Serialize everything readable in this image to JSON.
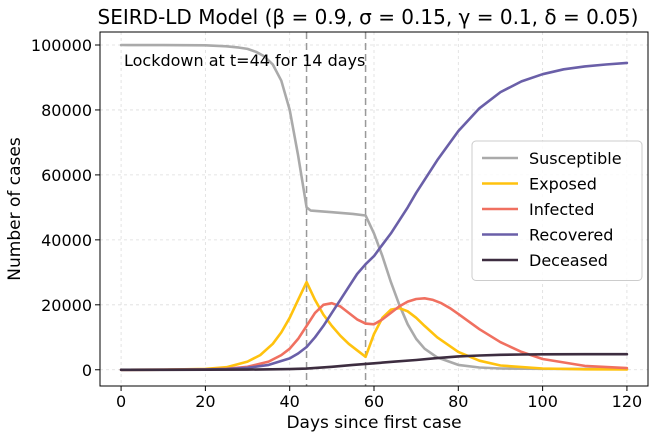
{
  "chart_data": {
    "type": "line",
    "title": "SEIRD-LD Model (β = 0.9, σ = 0.15, γ = 0.1, δ = 0.05)",
    "xlabel": "Days since first case",
    "ylabel": "Number of cases",
    "xlim": [
      -5,
      125
    ],
    "ylim": [
      -5000,
      104000
    ],
    "xticks": [
      0,
      20,
      40,
      60,
      80,
      100,
      120
    ],
    "yticks": [
      0,
      20000,
      40000,
      60000,
      80000,
      100000
    ],
    "grid": true,
    "legend_position": "center-right",
    "annotation": "Lockdown at t=44 for 14 days",
    "lockdown_lines": [
      44,
      58
    ],
    "series": [
      {
        "name": "Susceptible",
        "color": "#aaaaaa",
        "x": [
          0,
          10,
          20,
          25,
          28,
          30,
          32,
          34,
          36,
          38,
          40,
          42,
          44,
          45,
          50,
          55,
          58,
          60,
          62,
          64,
          66,
          68,
          70,
          72,
          75,
          80,
          85,
          90,
          100,
          110,
          120
        ],
        "y": [
          100000,
          99980,
          99900,
          99600,
          99200,
          98800,
          97900,
          96500,
          94000,
          89000,
          80000,
          66000,
          50000,
          49000,
          48500,
          48000,
          47500,
          42000,
          35000,
          27000,
          20000,
          14000,
          9500,
          6500,
          3800,
          1500,
          700,
          400,
          300,
          250,
          250
        ]
      },
      {
        "name": "Exposed",
        "color": "#ffc20e",
        "x": [
          0,
          10,
          20,
          25,
          30,
          33,
          36,
          38,
          40,
          42,
          44,
          46,
          48,
          50,
          52,
          54,
          56,
          58,
          60,
          62,
          64,
          66,
          68,
          70,
          72,
          75,
          80,
          85,
          90,
          100,
          110,
          120
        ],
        "y": [
          0,
          20,
          250,
          800,
          2500,
          4500,
          8000,
          11500,
          16000,
          21500,
          27000,
          21500,
          17000,
          13500,
          10500,
          8000,
          6000,
          4000,
          11000,
          16000,
          18500,
          19000,
          18000,
          16000,
          13500,
          10000,
          5500,
          2800,
          1300,
          400,
          150,
          100
        ]
      },
      {
        "name": "Infected",
        "color": "#f07060",
        "x": [
          0,
          10,
          20,
          25,
          30,
          35,
          38,
          40,
          42,
          44,
          46,
          48,
          50,
          52,
          54,
          56,
          58,
          60,
          62,
          64,
          66,
          68,
          70,
          72,
          74,
          76,
          78,
          80,
          85,
          90,
          95,
          100,
          110,
          120
        ],
        "y": [
          0,
          10,
          100,
          300,
          900,
          2500,
          4500,
          6500,
          9500,
          13500,
          17500,
          20000,
          20500,
          19500,
          17500,
          15500,
          14200,
          14000,
          15500,
          17500,
          19500,
          21000,
          21800,
          22000,
          21500,
          20500,
          19000,
          17200,
          12500,
          8500,
          5500,
          3300,
          1200,
          500
        ]
      },
      {
        "name": "Recovered",
        "color": "#6a5fa8",
        "x": [
          0,
          10,
          20,
          25,
          30,
          35,
          40,
          42,
          44,
          46,
          48,
          50,
          52,
          54,
          56,
          58,
          60,
          62,
          64,
          66,
          68,
          70,
          72,
          75,
          80,
          85,
          90,
          95,
          100,
          105,
          110,
          115,
          120
        ],
        "y": [
          0,
          5,
          60,
          200,
          600,
          1500,
          3500,
          5000,
          7000,
          10000,
          13500,
          17500,
          21500,
          25500,
          29500,
          32500,
          35000,
          38500,
          42000,
          46000,
          50000,
          54500,
          58500,
          64500,
          73500,
          80500,
          85500,
          88800,
          91000,
          92500,
          93400,
          94000,
          94500
        ]
      },
      {
        "name": "Deceased",
        "color": "#3d2d40",
        "x": [
          0,
          10,
          20,
          30,
          40,
          44,
          50,
          55,
          60,
          65,
          70,
          75,
          80,
          85,
          90,
          95,
          100,
          110,
          120
        ],
        "y": [
          0,
          0,
          10,
          40,
          200,
          350,
          900,
          1500,
          2000,
          2500,
          3000,
          3600,
          4100,
          4400,
          4600,
          4700,
          4750,
          4800,
          4800
        ]
      }
    ]
  }
}
